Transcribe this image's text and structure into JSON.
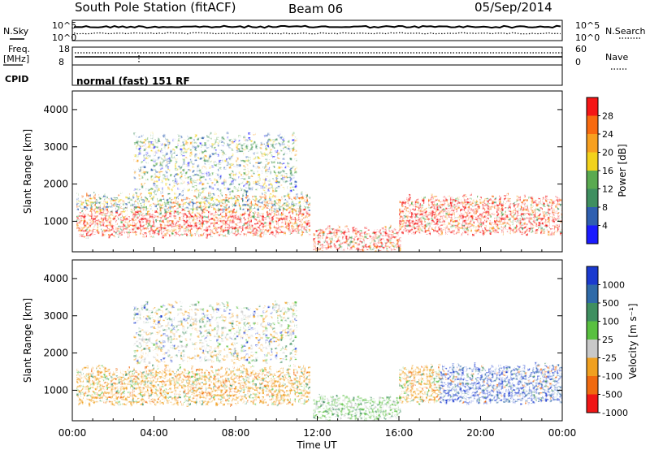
{
  "header": {
    "title": "South Pole Station (fitACF)",
    "beam": "Beam 06",
    "date": "05/Sep/2014"
  },
  "params": {
    "nsky_label": "N.Sky",
    "nsearch_label": "N.Search",
    "freq_label_1": "Freq.",
    "freq_label_2": "[MHz]",
    "nave_label": "Nave",
    "cpid_label": "CPID",
    "cpid_value": "normal (fast) 151 RF",
    "noise_ticks_left": [
      "10^5",
      "10^0"
    ],
    "noise_ticks_right": [
      "10^5",
      "10^0"
    ],
    "freq_ticks": [
      "18",
      "8"
    ],
    "nave_ticks": [
      "60",
      "0"
    ]
  },
  "chart_data": [
    {
      "type": "heatmap",
      "name": "power",
      "xlabel": "",
      "ylabel": "Slant Range [km]",
      "ylim": [
        180,
        4500
      ],
      "xlim": [
        0,
        24
      ],
      "y_ticks": [
        "1000",
        "2000",
        "3000",
        "4000"
      ],
      "colorbar": {
        "label": "Power [dB]",
        "ticks": [
          "4",
          "8",
          "12",
          "16",
          "20",
          "24",
          "28"
        ],
        "colors": [
          "#1a1aff",
          "#2f5fb0",
          "#3f8f60",
          "#5aaa50",
          "#f2d21c",
          "#f7a020",
          "#f86a10",
          "#f51616"
        ]
      },
      "regions": [
        {
          "t": [
            0.2,
            11.6
          ],
          "r": [
            650,
            1300
          ],
          "level": "high"
        },
        {
          "t": [
            0.2,
            11.6
          ],
          "r": [
            1300,
            1700
          ],
          "level": "medium"
        },
        {
          "t": [
            3.0,
            11.0
          ],
          "r": [
            1800,
            3300
          ],
          "level": "mixed"
        },
        {
          "t": [
            11.8,
            16.0
          ],
          "r": [
            250,
            800
          ],
          "level": "high"
        },
        {
          "t": [
            16.0,
            24.0
          ],
          "r": [
            700,
            1650
          ],
          "level": "high"
        }
      ]
    },
    {
      "type": "heatmap",
      "name": "velocity",
      "xlabel": "Time UT",
      "ylabel": "Slant Range [km]",
      "ylim": [
        180,
        4500
      ],
      "xlim": [
        0,
        24
      ],
      "x_ticks": [
        "00:00",
        "04:00",
        "08:00",
        "12:00",
        "16:00",
        "20:00",
        "00:00"
      ],
      "y_ticks": [
        "1000",
        "2000",
        "3000",
        "4000"
      ],
      "colorbar": {
        "label": "Velocity [m s⁻¹]",
        "ticks": [
          "1000",
          "500",
          "100",
          "25",
          "-25",
          "-100",
          "-500",
          "-1000"
        ],
        "colors": [
          "#1a3acf",
          "#2f6aa8",
          "#3f8f60",
          "#59c040",
          "#c8c8c8",
          "#f0a020",
          "#f06a10",
          "#f01616"
        ]
      },
      "regions": [
        {
          "t": [
            0.2,
            11.6
          ],
          "r": [
            650,
            1600
          ],
          "level": "negative"
        },
        {
          "t": [
            3.0,
            11.0
          ],
          "r": [
            1800,
            3300
          ],
          "level": "mixed"
        },
        {
          "t": [
            11.8,
            16.0
          ],
          "r": [
            250,
            800
          ],
          "level": "positive_low"
        },
        {
          "t": [
            16.0,
            18.0
          ],
          "r": [
            700,
            1650
          ],
          "level": "negative"
        },
        {
          "t": [
            18.0,
            24.0
          ],
          "r": [
            700,
            1650
          ],
          "level": "positive"
        }
      ]
    }
  ]
}
